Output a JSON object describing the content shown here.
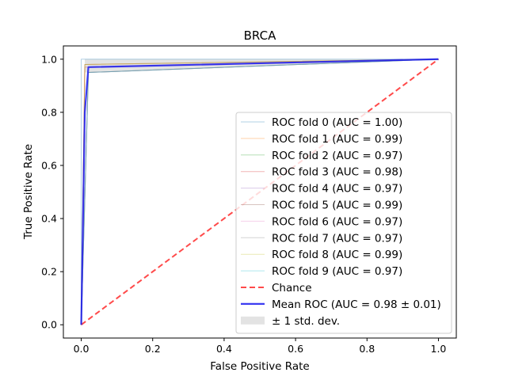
{
  "chart_data": {
    "type": "line",
    "title": "BRCA",
    "xlabel": "False Positive Rate",
    "ylabel": "True Positive Rate",
    "xlim": [
      -0.05,
      1.05
    ],
    "ylim": [
      -0.05,
      1.05
    ],
    "xticks": [
      "0.0",
      "0.2",
      "0.4",
      "0.6",
      "0.8",
      "1.0"
    ],
    "yticks": [
      "0.0",
      "0.2",
      "0.4",
      "0.6",
      "0.8",
      "1.0"
    ],
    "legend_position": "lower right",
    "series": [
      {
        "name": "ROC fold 0 (AUC = 1.00)",
        "color": "#1f77b4",
        "x": [
          0,
          0,
          1
        ],
        "y": [
          0,
          1.0,
          1.0
        ]
      },
      {
        "name": "ROC fold 1 (AUC = 0.99)",
        "color": "#ff7f0e",
        "x": [
          0,
          0.01,
          1
        ],
        "y": [
          0,
          0.98,
          1.0
        ]
      },
      {
        "name": "ROC fold 2 (AUC = 0.97)",
        "color": "#2ca02c",
        "x": [
          0,
          0.02,
          1
        ],
        "y": [
          0,
          0.95,
          1.0
        ]
      },
      {
        "name": "ROC fold 3 (AUC = 0.98)",
        "color": "#d62728",
        "x": [
          0,
          0.01,
          1
        ],
        "y": [
          0,
          0.97,
          1.0
        ]
      },
      {
        "name": "ROC fold 4 (AUC = 0.97)",
        "color": "#9467bd",
        "x": [
          0,
          0.02,
          1
        ],
        "y": [
          0,
          0.95,
          1.0
        ]
      },
      {
        "name": "ROC fold 5 (AUC = 0.99)",
        "color": "#8c564b",
        "x": [
          0,
          0.01,
          1
        ],
        "y": [
          0,
          0.98,
          1.0
        ]
      },
      {
        "name": "ROC fold 6 (AUC = 0.97)",
        "color": "#e377c2",
        "x": [
          0,
          0.02,
          1
        ],
        "y": [
          0,
          0.95,
          1.0
        ]
      },
      {
        "name": "ROC fold 7 (AUC = 0.97)",
        "color": "#7f7f7f",
        "x": [
          0,
          0.02,
          1
        ],
        "y": [
          0,
          0.95,
          1.0
        ]
      },
      {
        "name": "ROC fold 8 (AUC = 0.99)",
        "color": "#bcbd22",
        "x": [
          0,
          0.01,
          1
        ],
        "y": [
          0,
          0.98,
          1.0
        ]
      },
      {
        "name": "ROC fold 9 (AUC = 0.97)",
        "color": "#17becf",
        "x": [
          0,
          0.02,
          1
        ],
        "y": [
          0,
          0.95,
          1.0
        ]
      },
      {
        "name": "Chance",
        "color": "#ff2a2a",
        "dashed": true,
        "x": [
          0,
          1
        ],
        "y": [
          0,
          1
        ]
      },
      {
        "name": "Mean ROC (AUC = 0.98 ± 0.01)",
        "color": "#1a1aee",
        "x": [
          0,
          0.01,
          0.02,
          1
        ],
        "y": [
          0,
          0.8,
          0.97,
          1.0
        ]
      }
    ],
    "std_band": {
      "name": "± 1 std. dev.",
      "color": "#b0b0b0",
      "x": [
        0,
        0.01,
        0.02,
        1
      ],
      "upper": [
        0,
        1.0,
        1.0,
        1.0
      ],
      "lower": [
        0,
        0.95,
        0.95,
        1.0
      ]
    }
  }
}
